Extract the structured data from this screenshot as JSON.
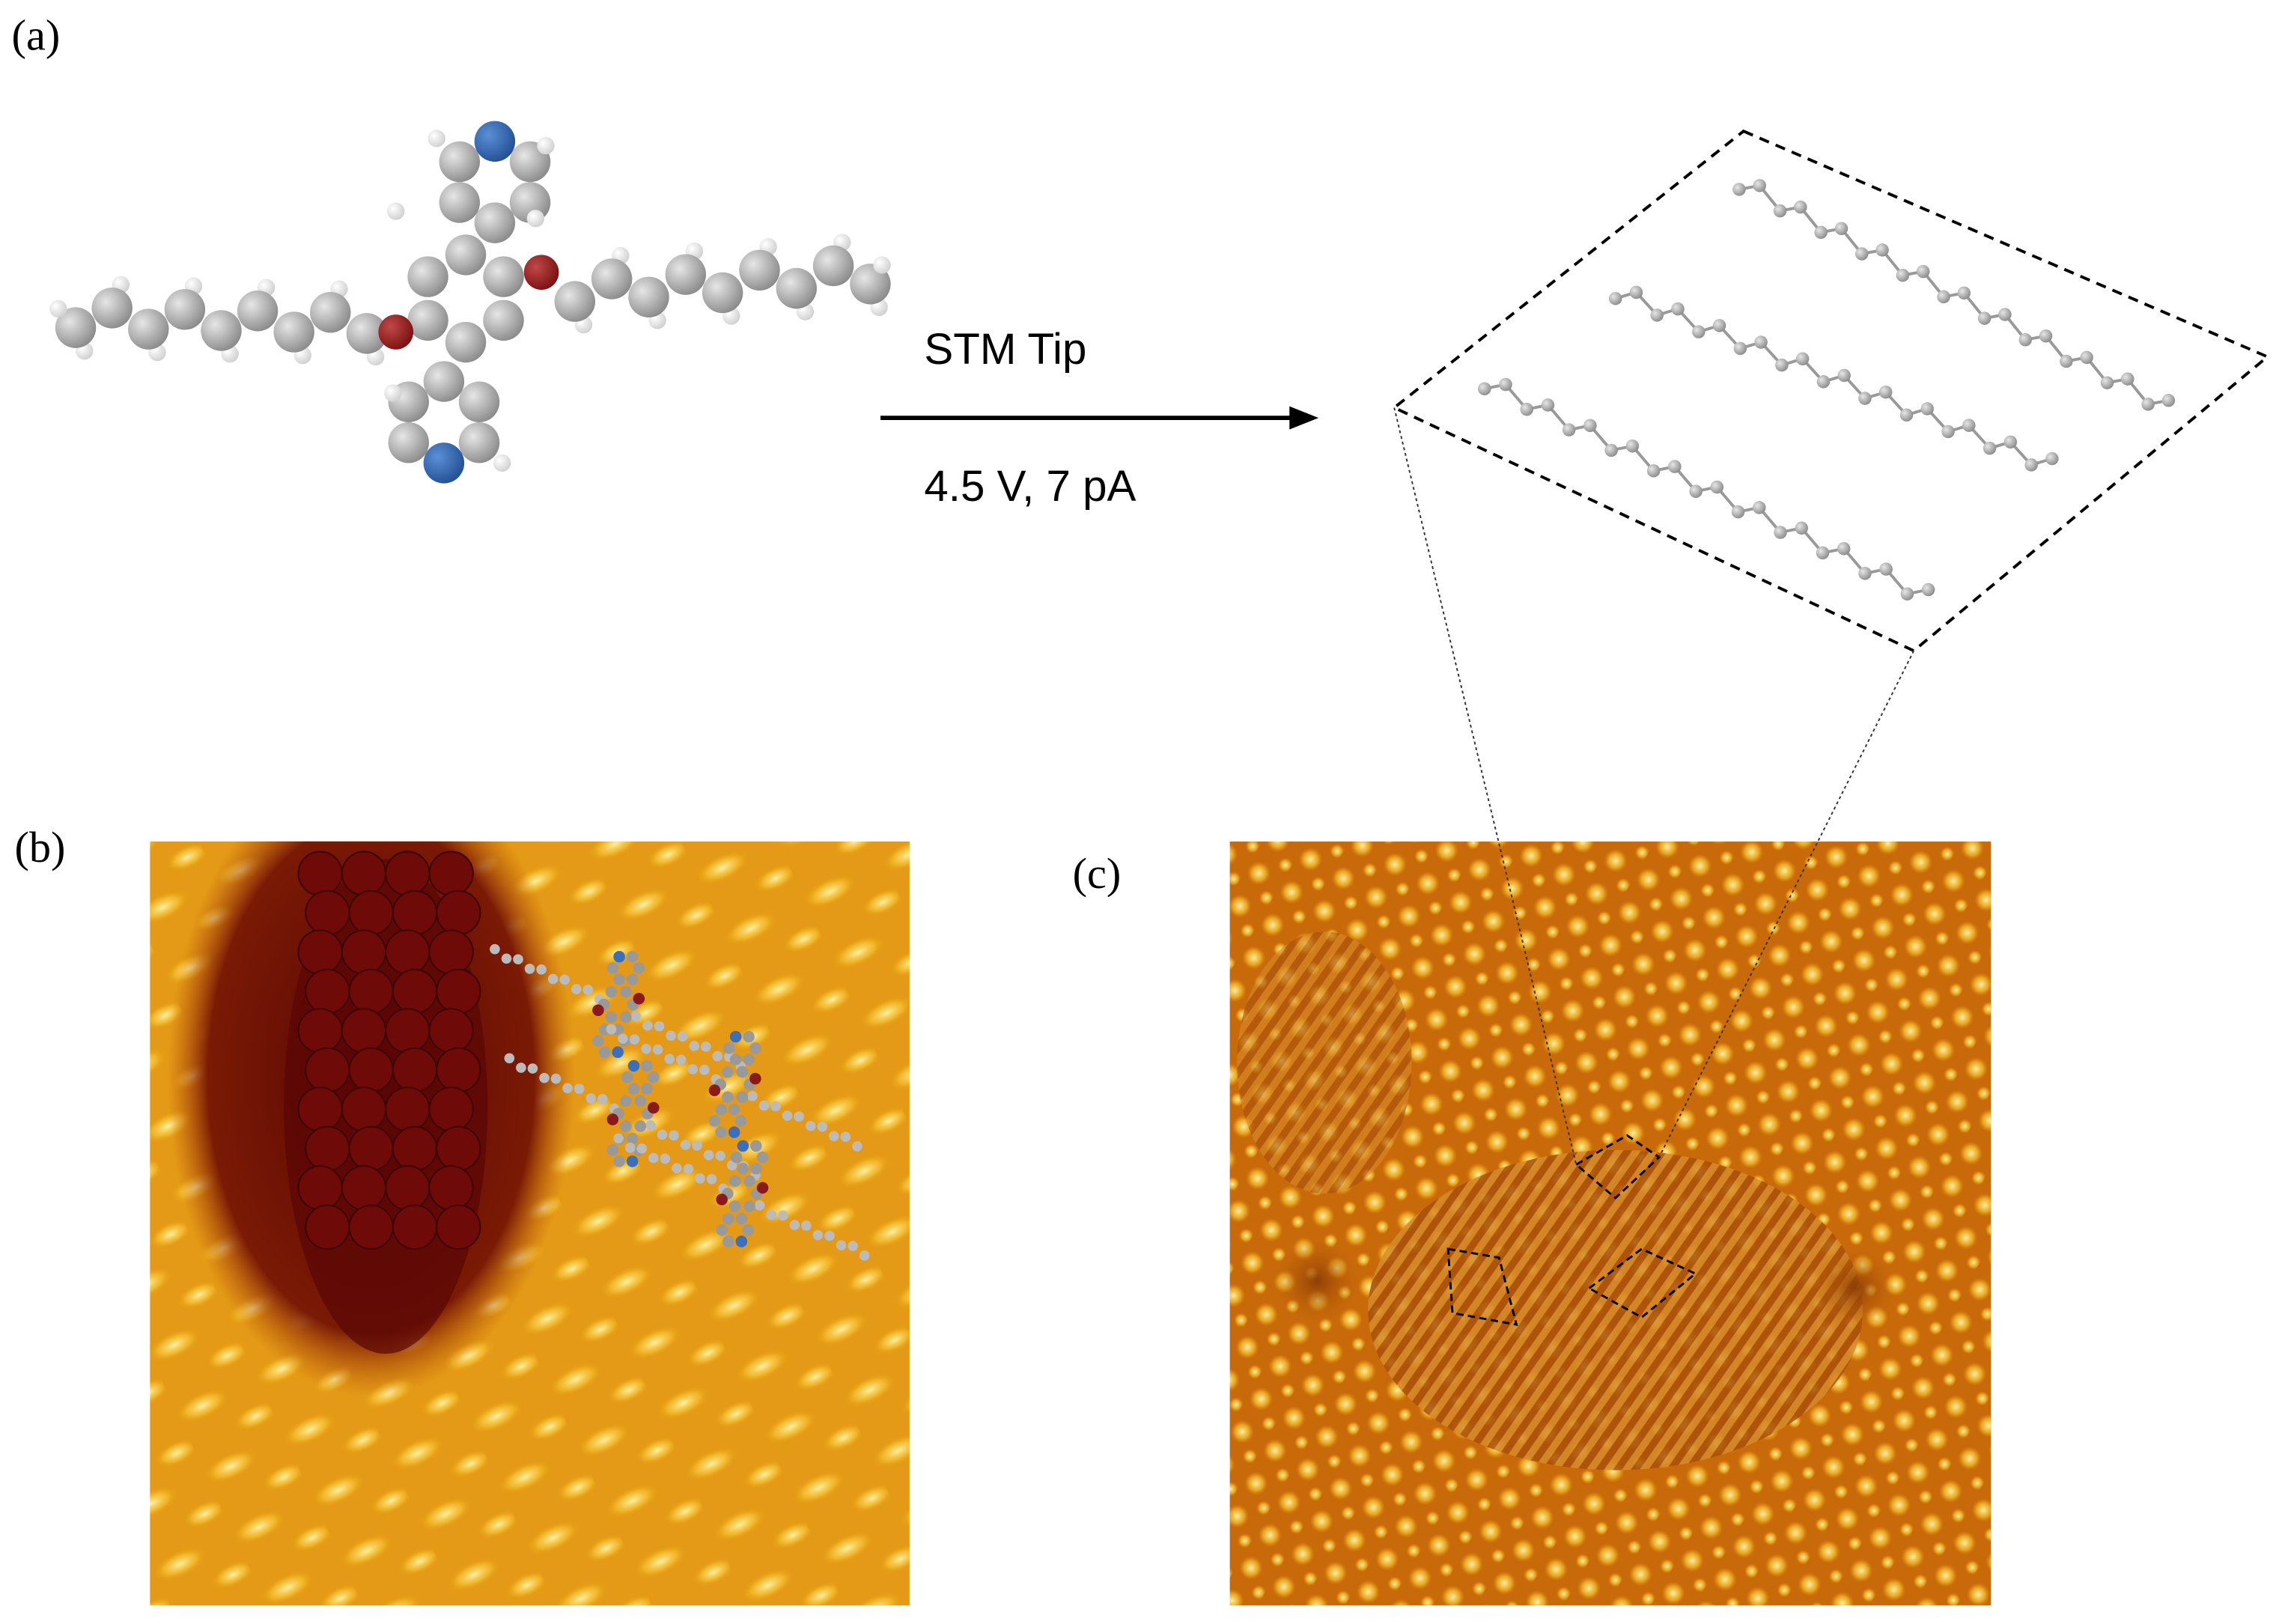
{
  "panels": [
    {
      "label": "(a)"
    },
    {
      "label": "(b)"
    },
    {
      "label": "(c)"
    }
  ],
  "arrow": {
    "label_top": "STM Tip",
    "label_bottom": "4.5 V, 7 pA"
  }
}
